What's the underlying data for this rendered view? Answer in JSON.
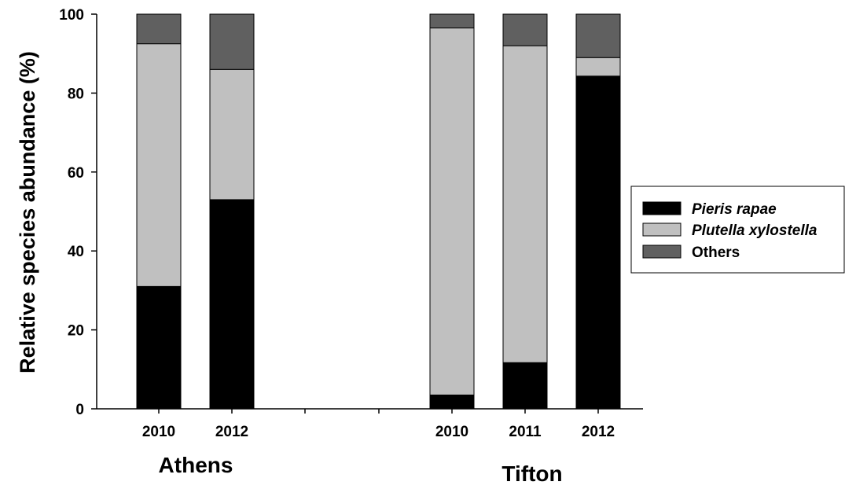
{
  "chart_data": {
    "type": "bar",
    "stacked": true,
    "ylabel": "Relative species abundance (%)",
    "ylim": [
      0,
      100
    ],
    "yticks": [
      0,
      20,
      40,
      60,
      80,
      100
    ],
    "groups": [
      "Athens",
      "Tifton"
    ],
    "bars": [
      {
        "group": "Athens",
        "label": "2010",
        "values": [
          31,
          61.5,
          7.5
        ]
      },
      {
        "group": "Athens",
        "label": "2012",
        "values": [
          53,
          33,
          14
        ]
      },
      {
        "group": "Tifton",
        "label": "2010",
        "values": [
          3.5,
          93,
          3.5
        ]
      },
      {
        "group": "Tifton",
        "label": "2011",
        "values": [
          11.7,
          80.3,
          8
        ]
      },
      {
        "group": "Tifton",
        "label": "2012",
        "values": [
          84.3,
          4.7,
          11
        ]
      }
    ],
    "series": [
      {
        "name": "Pieris rapae",
        "color": "#000000",
        "italic": true
      },
      {
        "name": "Plutella xylostella",
        "color": "#c0c0c0",
        "italic": true
      },
      {
        "name": "Others",
        "color": "#606060",
        "italic": false
      }
    ],
    "legend_position": "right",
    "grid": false
  }
}
